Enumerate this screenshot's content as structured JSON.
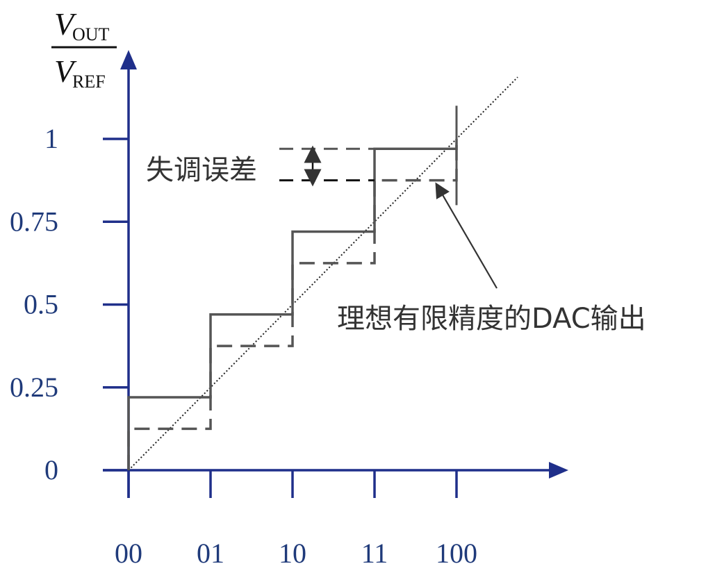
{
  "chart_data": {
    "type": "line",
    "title": "",
    "ylabel": {
      "numerator": {
        "main": "V",
        "sub": "OUT"
      },
      "denominator": {
        "main": "V",
        "sub": "REF"
      }
    },
    "xlabel": "",
    "x_categories": [
      "00",
      "01",
      "10",
      "11",
      "100"
    ],
    "y_ticks": [
      0,
      0.25,
      0.5,
      0.75,
      1
    ],
    "y_tick_labels": [
      "0",
      "0.25",
      "0.5",
      "0.75",
      "1"
    ],
    "ylim": [
      0,
      1
    ],
    "grid": false,
    "series": [
      {
        "style": "dotted",
        "points": [
          [
            0,
            0
          ],
          [
            4,
            1
          ]
        ]
      },
      {
        "style": "solid",
        "levels": [
          0.22,
          0.47,
          0.72,
          0.97
        ]
      },
      {
        "style": "dashed",
        "levels": [
          0.125,
          0.375,
          0.625,
          0.875
        ]
      }
    ],
    "annotations": {
      "offset_error_label": "失调误差",
      "ideal_output_label": "理想有限精度的DAC输出"
    },
    "colors": {
      "axis": "#1f2f8a",
      "tick_text": "#1f3a7a",
      "series": "#555555"
    }
  }
}
